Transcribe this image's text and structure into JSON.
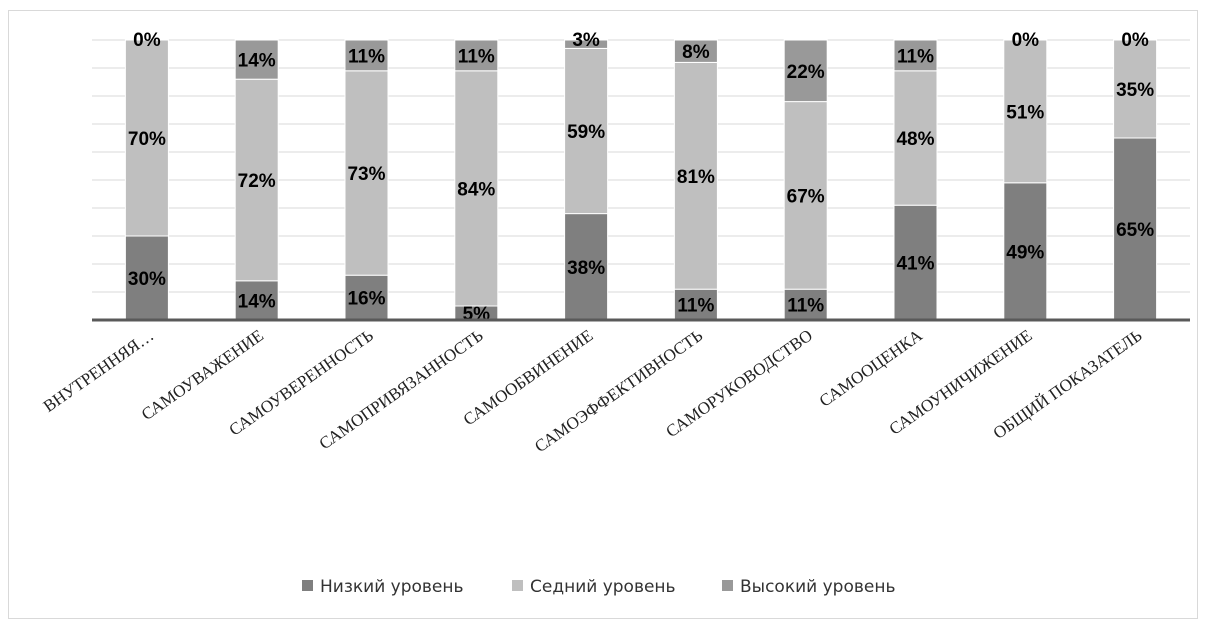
{
  "chart_data": {
    "type": "bar",
    "stacked": true,
    "percent": true,
    "categories": [
      "ВНУТРЕННЯЯ…",
      "САМОУВАЖЕНИЕ",
      "САМОУВЕРЕННОСТЬ",
      "САМОПРИВЯЗАННОСТЬ",
      "САМООБВИНЕНИЕ",
      "САМОЭФФЕКТИВНОСТЬ",
      "САМОРУКОВОДСТВО",
      "САМООЦЕНКА",
      "САМОУНИЧИЖЕНИЕ",
      "ОБЩИЙ ПОКАЗАТЕЛЬ"
    ],
    "series": [
      {
        "name": "Низкий уровень",
        "values": [
          30,
          14,
          16,
          5,
          38,
          11,
          11,
          41,
          49,
          65
        ],
        "color": "#7f7f7f",
        "labels": [
          "30%",
          "14%",
          "16%",
          "5%",
          "38%",
          "11%",
          "11%",
          "41%",
          "49%",
          "65%"
        ]
      },
      {
        "name": "Седний уровень",
        "values": [
          70,
          72,
          73,
          84,
          59,
          81,
          67,
          48,
          51,
          35
        ],
        "color": "#bfbfbf",
        "labels": [
          "70%",
          "72%",
          "73%",
          "84%",
          "59%",
          "81%",
          "67%",
          "48%",
          "51%",
          "35%"
        ]
      },
      {
        "name": "Высокий уровень",
        "values": [
          0,
          14,
          11,
          11,
          3,
          8,
          22,
          11,
          0,
          0
        ],
        "color": "#999999",
        "labels": [
          "0%",
          "14%",
          "11%",
          "11%",
          "3%",
          "8%",
          "22%",
          "11%",
          "0%",
          "0%"
        ]
      }
    ],
    "ylim": [
      0,
      100
    ],
    "grid": true,
    "legend": "bottom"
  }
}
